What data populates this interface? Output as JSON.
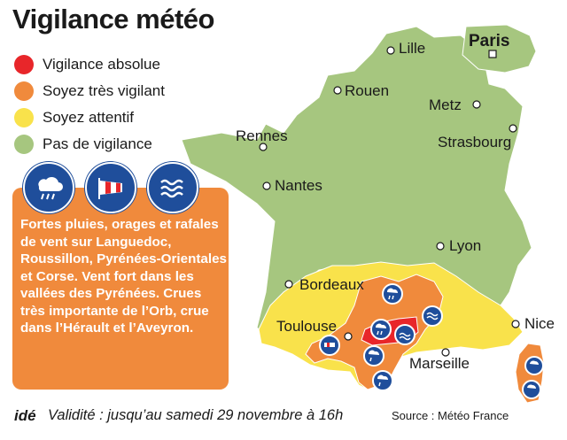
{
  "title": "Vigilance météo",
  "legend": [
    {
      "label": "Vigilance absolue",
      "color": "#e8262a"
    },
    {
      "label": "Soyez très vigilant",
      "color": "#f08a3c"
    },
    {
      "label": "Soyez attentif",
      "color": "#f9e24b"
    },
    {
      "label": "Pas de vigilance",
      "color": "#a6c67f"
    }
  ],
  "hazard_icons": [
    "rain-storm-icon",
    "wind-sock-icon",
    "flood-waves-icon"
  ],
  "info_text": "Fortes pluies, orages et rafales de vent sur Languedoc, Roussillon, Pyrénées-Orientales et Corse. Vent fort dans les vallées des Pyrénées. Crues très importante de l’Orb, crue dans l’Hérault et l’Aveyron.",
  "cities": {
    "paris": "Paris",
    "lille": "Lille",
    "rouen": "Rouen",
    "metz": "Metz",
    "strasbourg": "Strasbourg",
    "rennes": "Rennes",
    "nantes": "Nantes",
    "lyon": "Lyon",
    "bordeaux": "Bordeaux",
    "toulouse": "Toulouse",
    "nice": "Nice",
    "marseille": "Marseille"
  },
  "footer": {
    "logo": "idé",
    "validity": "Validité : jusqu’au samedi 29 novembre à 16h",
    "source": "Source : Météo France"
  },
  "colors": {
    "green": "#a6c67f",
    "yellow": "#f9e24b",
    "orange": "#f08a3c",
    "red": "#e8262a",
    "blue": "#1f4e9b"
  }
}
